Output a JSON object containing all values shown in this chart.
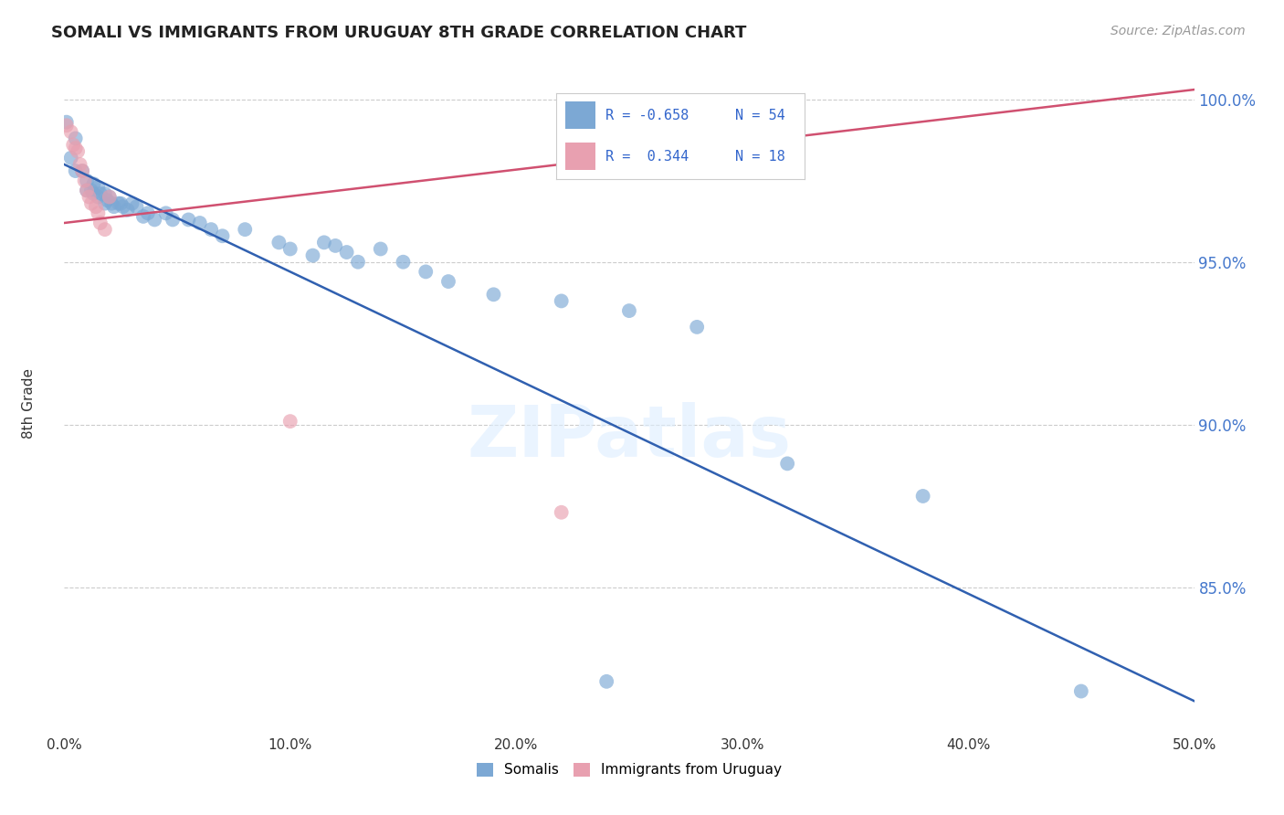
{
  "title": "SOMALI VS IMMIGRANTS FROM URUGUAY 8TH GRADE CORRELATION CHART",
  "source": "Source: ZipAtlas.com",
  "ylabel": "8th Grade",
  "yaxis_labels": [
    "100.0%",
    "95.0%",
    "90.0%",
    "85.0%"
  ],
  "yaxis_values": [
    1.0,
    0.95,
    0.9,
    0.85
  ],
  "legend_blue_r": "R = -0.658",
  "legend_blue_n": "N = 54",
  "legend_pink_r": "R =  0.344",
  "legend_pink_n": "N = 18",
  "legend_label_blue": "Somalis",
  "legend_label_pink": "Immigrants from Uruguay",
  "blue_color": "#7ca8d4",
  "pink_color": "#e8a0b0",
  "blue_line_color": "#3060b0",
  "pink_line_color": "#d05070",
  "watermark": "ZIPatlas",
  "blue_dots": [
    [
      0.001,
      0.993
    ],
    [
      0.003,
      0.982
    ],
    [
      0.005,
      0.988
    ],
    [
      0.005,
      0.978
    ],
    [
      0.008,
      0.978
    ],
    [
      0.01,
      0.975
    ],
    [
      0.01,
      0.972
    ],
    [
      0.012,
      0.972
    ],
    [
      0.013,
      0.974
    ],
    [
      0.013,
      0.971
    ],
    [
      0.015,
      0.973
    ],
    [
      0.015,
      0.97
    ],
    [
      0.016,
      0.971
    ],
    [
      0.018,
      0.971
    ],
    [
      0.018,
      0.968
    ],
    [
      0.019,
      0.969
    ],
    [
      0.02,
      0.97
    ],
    [
      0.021,
      0.968
    ],
    [
      0.022,
      0.967
    ],
    [
      0.024,
      0.968
    ],
    [
      0.025,
      0.968
    ],
    [
      0.026,
      0.967
    ],
    [
      0.028,
      0.966
    ],
    [
      0.03,
      0.968
    ],
    [
      0.032,
      0.967
    ],
    [
      0.035,
      0.964
    ],
    [
      0.037,
      0.965
    ],
    [
      0.04,
      0.963
    ],
    [
      0.045,
      0.965
    ],
    [
      0.048,
      0.963
    ],
    [
      0.055,
      0.963
    ],
    [
      0.06,
      0.962
    ],
    [
      0.065,
      0.96
    ],
    [
      0.07,
      0.958
    ],
    [
      0.08,
      0.96
    ],
    [
      0.095,
      0.956
    ],
    [
      0.1,
      0.954
    ],
    [
      0.11,
      0.952
    ],
    [
      0.115,
      0.956
    ],
    [
      0.12,
      0.955
    ],
    [
      0.125,
      0.953
    ],
    [
      0.13,
      0.95
    ],
    [
      0.14,
      0.954
    ],
    [
      0.15,
      0.95
    ],
    [
      0.16,
      0.947
    ],
    [
      0.17,
      0.944
    ],
    [
      0.19,
      0.94
    ],
    [
      0.22,
      0.938
    ],
    [
      0.25,
      0.935
    ],
    [
      0.28,
      0.93
    ],
    [
      0.32,
      0.888
    ],
    [
      0.38,
      0.878
    ],
    [
      0.24,
      0.821
    ],
    [
      0.45,
      0.818
    ]
  ],
  "pink_dots": [
    [
      0.001,
      0.992
    ],
    [
      0.003,
      0.99
    ],
    [
      0.004,
      0.986
    ],
    [
      0.005,
      0.985
    ],
    [
      0.006,
      0.984
    ],
    [
      0.007,
      0.98
    ],
    [
      0.008,
      0.978
    ],
    [
      0.009,
      0.975
    ],
    [
      0.01,
      0.972
    ],
    [
      0.011,
      0.97
    ],
    [
      0.012,
      0.968
    ],
    [
      0.014,
      0.967
    ],
    [
      0.015,
      0.965
    ],
    [
      0.016,
      0.962
    ],
    [
      0.018,
      0.96
    ],
    [
      0.02,
      0.97
    ],
    [
      0.1,
      0.901
    ],
    [
      0.22,
      0.873
    ]
  ],
  "blue_line_x": [
    0.0,
    0.5
  ],
  "blue_line_y": [
    0.98,
    0.815
  ],
  "pink_line_x": [
    0.0,
    0.5
  ],
  "pink_line_y": [
    0.962,
    1.003
  ],
  "xlim": [
    0.0,
    0.5
  ],
  "ylim": [
    0.805,
    1.008
  ],
  "xticks": [
    0.0,
    0.1,
    0.2,
    0.3,
    0.4,
    0.5
  ],
  "xtick_labels": [
    "0.0%",
    "10.0%",
    "20.0%",
    "30.0%",
    "40.0%",
    "50.0%"
  ],
  "background_color": "#ffffff",
  "grid_color": "#cccccc"
}
